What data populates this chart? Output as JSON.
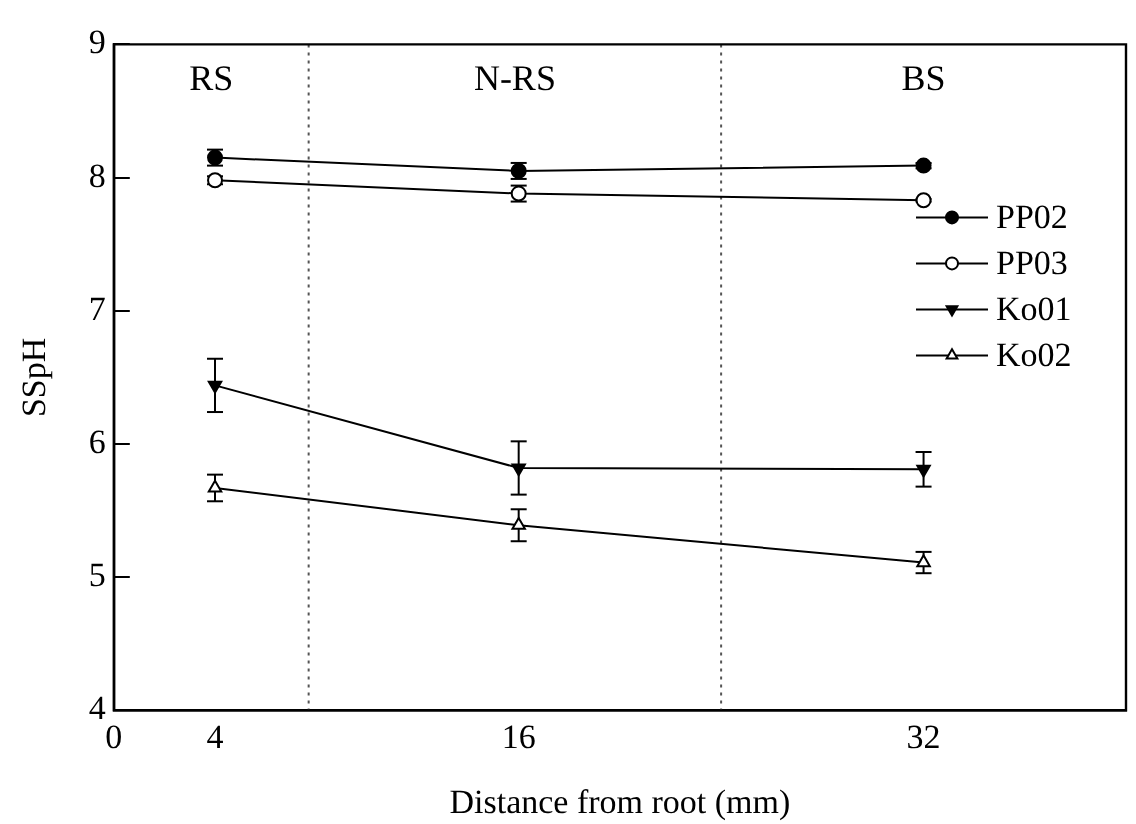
{
  "chart_data": {
    "type": "line",
    "xlabel": "Distance from root (mm)",
    "ylabel": "SSpH",
    "x": [
      4,
      16,
      32
    ],
    "xlim": [
      0,
      40
    ],
    "xticks": [
      0,
      4,
      16,
      32
    ],
    "ylim": [
      4,
      9
    ],
    "yticks": [
      4,
      5,
      6,
      7,
      8,
      9
    ],
    "series": [
      {
        "name": "PP02",
        "color": "#000000",
        "marker": "circle",
        "values": [
          8.15,
          8.05,
          8.09
        ],
        "errors": [
          0.06,
          0.06,
          0.02
        ]
      },
      {
        "name": "PP03",
        "color": "#000000",
        "marker": "circle",
        "values": [
          7.98,
          7.88,
          7.83
        ],
        "errors": [
          0.03,
          0.06,
          0.01
        ]
      },
      {
        "name": "Ko01",
        "color": "#000000",
        "marker": "triangle",
        "values": [
          6.44,
          5.82,
          5.81
        ],
        "errors": [
          0.2,
          0.2,
          0.13
        ]
      },
      {
        "name": "Ko02",
        "color": "#000000",
        "marker": "triangle",
        "values": [
          5.67,
          5.39,
          5.11
        ],
        "errors": [
          0.1,
          0.12,
          0.08
        ]
      }
    ],
    "ref_lines": [
      {
        "axis": "x",
        "value": 7.7,
        "color": "#555555",
        "line_style": "dotted"
      },
      {
        "axis": "x",
        "value": 24,
        "color": "#555555",
        "line_style": "dotted"
      }
    ],
    "annotations": [
      "RS",
      "N-RS",
      "BS"
    ],
    "legend": "right",
    "grid": false
  }
}
